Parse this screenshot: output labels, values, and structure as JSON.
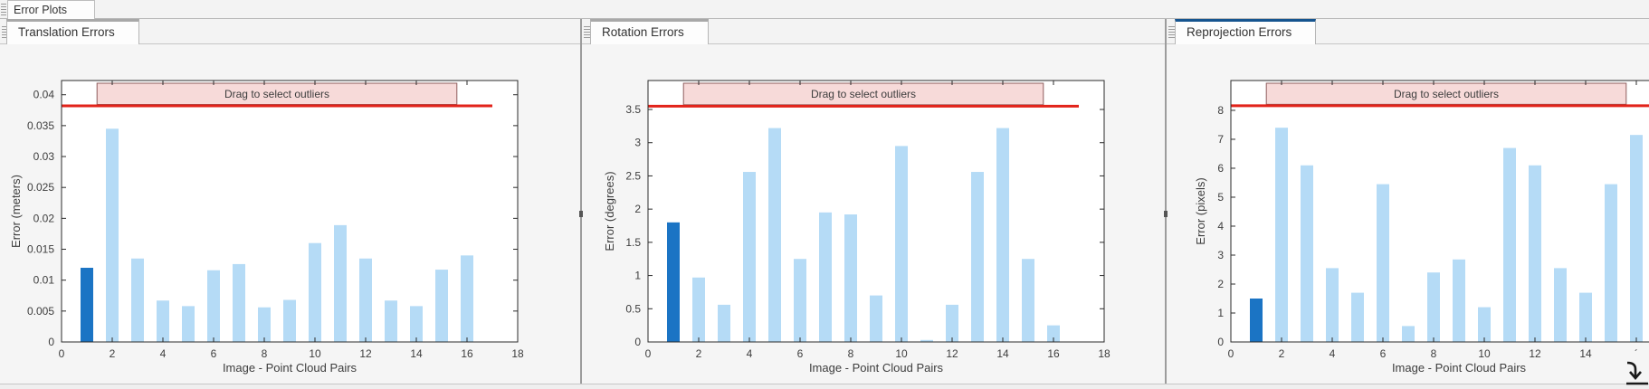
{
  "window": {
    "doc_tab": "Error Plots"
  },
  "colors": {
    "bar": "#b5dbf6",
    "bar_selected": "#1b74c4",
    "threshold": "#e2231a",
    "box_fill": "#f7dad9",
    "box_border": "#8e5c5c",
    "axis": "#2b2b2b",
    "tick_text": "#3d3d3d",
    "active_tab_accent": "#15548f",
    "inactive_tab_accent": "#a8a8a8"
  },
  "panels": [
    {
      "tab": "Translation Errors",
      "active": false
    },
    {
      "tab": "Rotation Errors",
      "active": false
    },
    {
      "tab": "Reprojection Errors",
      "active": true
    }
  ],
  "chart_data": [
    {
      "type": "bar",
      "title": "Translation Errors",
      "xlabel": "Image - Point Cloud Pairs",
      "ylabel": "Error (meters)",
      "x": [
        1,
        2,
        3,
        4,
        5,
        6,
        7,
        8,
        9,
        10,
        11,
        12,
        13,
        14,
        15,
        16
      ],
      "values": [
        0.012,
        0.0345,
        0.0135,
        0.0067,
        0.0058,
        0.0116,
        0.0126,
        0.0056,
        0.0068,
        0.016,
        0.0189,
        0.0135,
        0.0067,
        0.0058,
        0.0117,
        0.014
      ],
      "selected_index": 0,
      "threshold_line": 0.0382,
      "threshold_x_range": [
        0,
        17
      ],
      "outlier_box": {
        "label": "Drag to select outliers",
        "x_range": [
          1.4,
          15.6
        ]
      },
      "xlim": [
        0,
        18
      ],
      "ylim": [
        0,
        0.0423
      ],
      "grid": false,
      "legend": false,
      "xticks": [
        0,
        2,
        4,
        6,
        8,
        10,
        12,
        14,
        16,
        18
      ],
      "xtick_labels": [
        "0",
        "2",
        "4",
        "6",
        "8",
        "10",
        "12",
        "14",
        "16",
        "18"
      ],
      "yticks": [
        0,
        0.005,
        0.01,
        0.015,
        0.02,
        0.025,
        0.03,
        0.035,
        0.04
      ],
      "ytick_labels": [
        "0",
        "0.005",
        "0.01",
        "0.015",
        "0.02",
        "0.025",
        "0.03",
        "0.035",
        "0.04"
      ]
    },
    {
      "type": "bar",
      "title": "Rotation Errors",
      "xlabel": "Image - Point Cloud Pairs",
      "ylabel": "Error (degrees)",
      "x": [
        1,
        2,
        3,
        4,
        5,
        6,
        7,
        8,
        9,
        10,
        11,
        12,
        13,
        14,
        15,
        16
      ],
      "values": [
        1.8,
        0.97,
        0.56,
        2.56,
        3.22,
        1.25,
        1.95,
        1.92,
        0.7,
        2.95,
        0.03,
        0.56,
        2.56,
        3.22,
        1.25,
        0.25
      ],
      "selected_index": 0,
      "threshold_line": 3.55,
      "threshold_x_range": [
        0,
        17
      ],
      "outlier_box": {
        "label": "Drag to select outliers",
        "x_range": [
          1.4,
          15.6
        ]
      },
      "xlim": [
        0,
        18
      ],
      "ylim": [
        0,
        3.936
      ],
      "grid": false,
      "legend": false,
      "xticks": [
        0,
        2,
        4,
        6,
        8,
        10,
        12,
        14,
        16,
        18
      ],
      "xtick_labels": [
        "0",
        "2",
        "4",
        "6",
        "8",
        "10",
        "12",
        "14",
        "16",
        "18"
      ],
      "yticks": [
        0,
        0.5,
        1,
        1.5,
        2,
        2.5,
        3,
        3.5
      ],
      "ytick_labels": [
        "0",
        "0.5",
        "1",
        "1.5",
        "2",
        "2.5",
        "3",
        "3.5"
      ]
    },
    {
      "type": "bar",
      "title": "Reprojection Errors",
      "xlabel": "Image - Point Cloud Pairs",
      "ylabel": "Error (pixels)",
      "x": [
        1,
        2,
        3,
        4,
        5,
        6,
        7,
        8,
        9,
        10,
        11,
        12,
        13,
        14,
        15,
        16
      ],
      "values": [
        1.5,
        7.4,
        6.1,
        2.55,
        1.7,
        5.45,
        0.55,
        2.4,
        2.85,
        1.2,
        6.7,
        6.1,
        2.55,
        1.7,
        5.45,
        7.15
      ],
      "selected_index": 0,
      "threshold_line": 8.16,
      "threshold_x_range": [
        0,
        17
      ],
      "outlier_box": {
        "label": "Drag to select outliers",
        "x_range": [
          1.4,
          15.6
        ]
      },
      "xlim": [
        0,
        18
      ],
      "ylim": [
        0,
        9.03
      ],
      "grid": false,
      "legend": false,
      "xticks": [
        0,
        2,
        4,
        6,
        8,
        10,
        12,
        14,
        16,
        18
      ],
      "xtick_labels": [
        "0",
        "2",
        "4",
        "6",
        "8",
        "10",
        "12",
        "14",
        "´",
        ""
      ],
      "yticks": [
        0,
        1,
        2,
        3,
        4,
        5,
        6,
        7,
        8
      ],
      "ytick_labels": [
        "0",
        "1",
        "2",
        "3",
        "4",
        "5",
        "6",
        "7",
        "8"
      ]
    }
  ]
}
